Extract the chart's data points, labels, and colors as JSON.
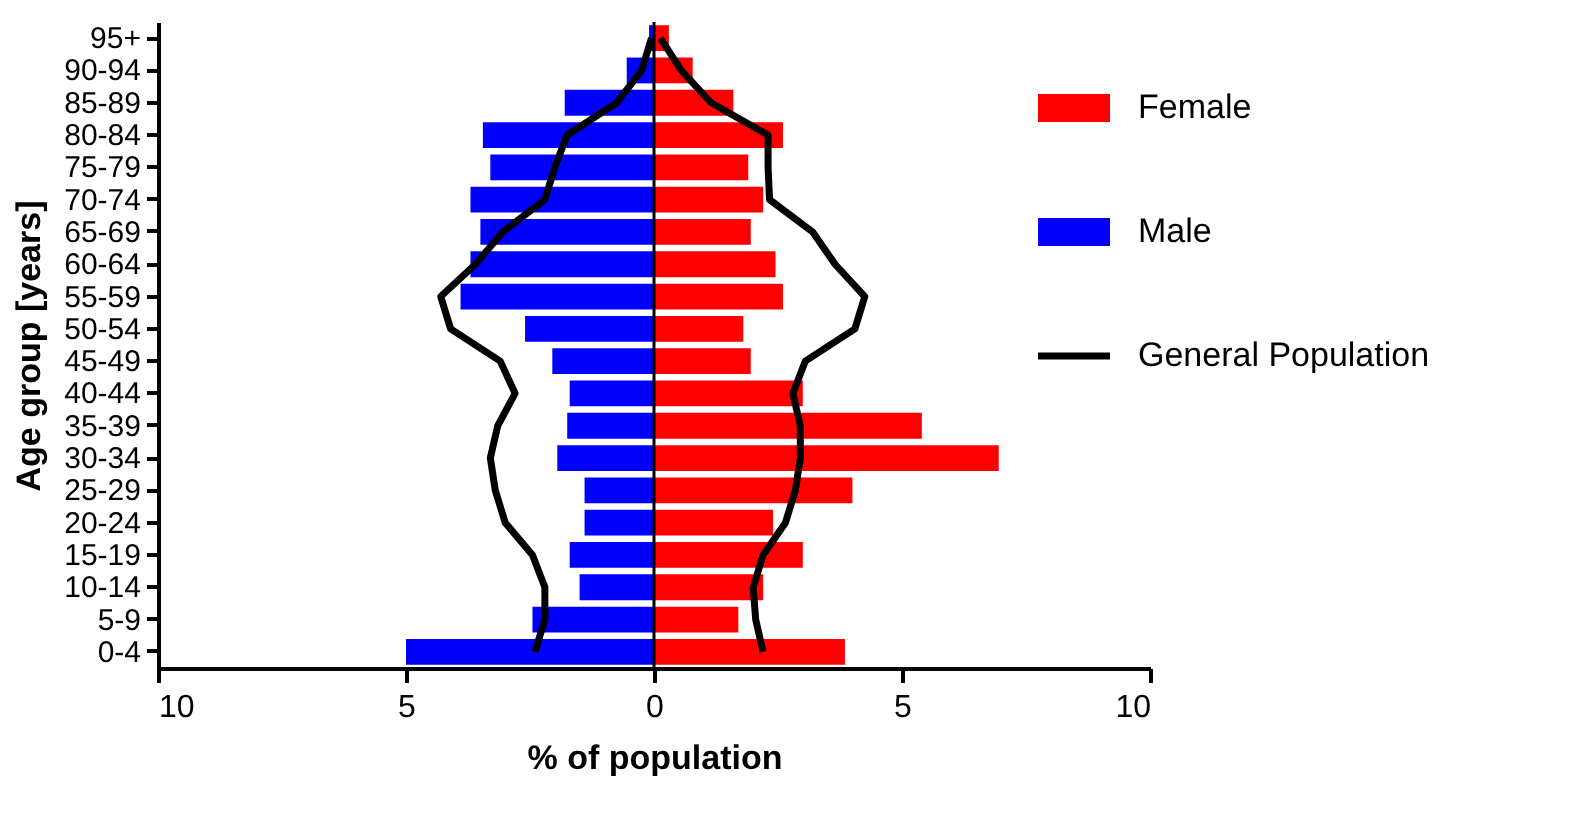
{
  "chart_data": {
    "type": "bar",
    "orientation": "horizontal",
    "xlabel": "% of population",
    "ylabel": "Age group [years]",
    "categories": [
      "95+",
      "90-94",
      "85-89",
      "80-84",
      "75-79",
      "70-74",
      "65-69",
      "60-64",
      "55-59",
      "50-54",
      "45-49",
      "40-44",
      "35-39",
      "30-34",
      "25-29",
      "20-24",
      "15-19",
      "10-14",
      "5-9",
      "0-4"
    ],
    "series": [
      {
        "name": "Female",
        "color": "#ff0000",
        "values": [
          0.3,
          0.78,
          1.6,
          2.6,
          1.9,
          2.2,
          1.95,
          2.45,
          2.6,
          1.8,
          1.95,
          3.0,
          5.4,
          6.95,
          4.0,
          2.4,
          3.0,
          2.2,
          1.7,
          3.85
        ]
      },
      {
        "name": "Male",
        "color": "#0000ff",
        "values": [
          -0.1,
          -0.55,
          -1.8,
          -3.45,
          -3.3,
          -3.7,
          -3.5,
          -3.7,
          -3.9,
          -2.6,
          -2.05,
          -1.7,
          -1.75,
          -1.95,
          -1.4,
          -1.4,
          -1.7,
          -1.5,
          -2.45,
          -5.0
        ]
      },
      {
        "name": "General Population",
        "type": "line",
        "color": "#000000",
        "values": [
          0.13,
          0.55,
          1.15,
          2.3,
          2.3,
          2.33,
          3.2,
          3.65,
          4.25,
          4.05,
          3.05,
          2.8,
          2.95,
          2.95,
          2.85,
          2.65,
          2.2,
          2.0,
          2.05,
          2.2
        ]
      },
      {
        "type": "line",
        "color": "#000000",
        "values": [
          -0.05,
          -0.25,
          -0.75,
          -1.75,
          -2.0,
          -2.2,
          -3.05,
          -3.6,
          -4.3,
          -4.1,
          -3.1,
          -2.8,
          -3.15,
          -3.3,
          -3.2,
          -3.0,
          -2.45,
          -2.2,
          -2.2,
          -2.4
        ]
      }
    ],
    "xlim": [
      -10,
      10
    ],
    "xticks": [
      {
        "value": -10,
        "label": "10"
      },
      {
        "value": -5,
        "label": "5"
      },
      0,
      5,
      {
        "value": 10,
        "label": "10"
      }
    ],
    "ref_lines": [
      {
        "axis": "x",
        "value": 0,
        "color": "#000000"
      }
    ],
    "stacked": true,
    "legend": "right",
    "grid": false,
    "marker": "none",
    "line_style": "solid"
  }
}
